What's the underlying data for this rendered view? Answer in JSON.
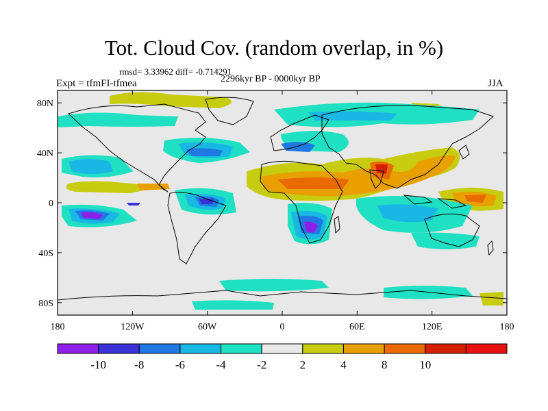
{
  "title": "Tot. Cloud Cov. (random overlap, in %)",
  "stats": "rmsd= 3.33962 diff= -0.714291",
  "period": "2296kyr BP - 0000kyr BP",
  "experiment": "Expt = tfmFI-tfmea",
  "season": "JJA",
  "axes": {
    "lon_ticks": [
      "180",
      "120W",
      "60W",
      "0",
      "60E",
      "120E",
      "180"
    ],
    "lat_ticks": [
      "80N",
      "40N",
      "0",
      "40S",
      "80S"
    ]
  },
  "colorbar": {
    "colors": [
      "#8f1fe8",
      "#3b32d6",
      "#1f78e3",
      "#19b7e3",
      "#1fe0c2",
      "#e8e8e8",
      "#c7cc10",
      "#e8a000",
      "#e86a00",
      "#d42000",
      "#e61111"
    ],
    "labels": [
      "-10",
      "-8",
      "-6",
      "-4",
      "-2",
      "2",
      "4",
      "8",
      "10"
    ]
  }
}
